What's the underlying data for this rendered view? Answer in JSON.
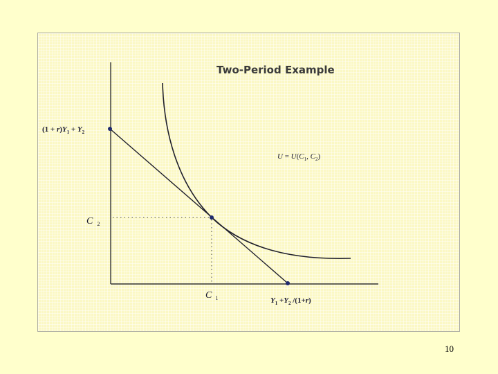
{
  "title": "Two-Period Example",
  "y_intercept_label": {
    "coef_open": "(1 + ",
    "r": "r",
    "coef_close": ")",
    "Y1": "Y",
    "sub1": "1",
    "plus": " + ",
    "Y2": "Y",
    "sub2": "2"
  },
  "x_intercept_label": {
    "Y1": "Y",
    "sub1": "1",
    "plus": " +",
    "Y2": "Y",
    "sub2": "2",
    "rest_open": " /(1+",
    "r": "r",
    "rest_close": ")"
  },
  "utility_label": {
    "lhs": "U",
    "eq": " = ",
    "U": "U",
    "open": "(",
    "C1": "C",
    "sub1": "1",
    "comma": ", ",
    "C2": "C",
    "sub2": "2",
    "close": ")"
  },
  "c2_label": {
    "C": "C",
    "sub": "2"
  },
  "c1_label": {
    "C": "C",
    "sub": "1"
  },
  "page_number": "10",
  "colors": {
    "background": "#ffffcc",
    "panel": "#fbf8c4",
    "lines": "#1f1f2b",
    "points": "#1f2a6e"
  }
}
